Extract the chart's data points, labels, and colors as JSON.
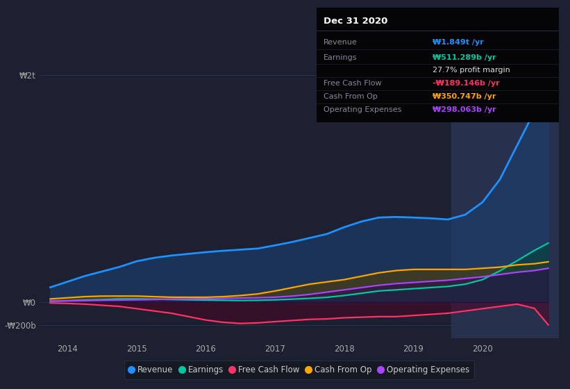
{
  "bg_color": "#1c2030",
  "plot_bg_color": "#1c2030",
  "grid_color": "#2a3347",
  "title_box": {
    "title": "Dec 31 2020",
    "row_data": [
      {
        "label": "Revenue",
        "value": "₩1.849t /yr",
        "value_color": "#1e90ff"
      },
      {
        "label": "Earnings",
        "value": "₩511.289b /yr",
        "value_color": "#00c8a0"
      },
      {
        "label": "",
        "value": "27.7% profit margin",
        "value_color": "#dddddd"
      },
      {
        "label": "Free Cash Flow",
        "value": "-₩189.146b /yr",
        "value_color": "#ff3366"
      },
      {
        "label": "Cash From Op",
        "value": "₩350.747b /yr",
        "value_color": "#ffa500"
      },
      {
        "label": "Operating Expenses",
        "value": "₩298.063b /yr",
        "value_color": "#aa44ff"
      }
    ],
    "label_color": "#888899",
    "bg_color": "#050508"
  },
  "ytick_labels": [
    "₩2t",
    "₩0",
    "-₩200b"
  ],
  "ytick_vals": [
    2000,
    0,
    -200
  ],
  "ylim": [
    -320,
    2250
  ],
  "xlim": [
    2013.6,
    2021.1
  ],
  "highlight_x_start": 2019.55,
  "highlight_x_end": 2021.1,
  "highlight_color": "#2a3555",
  "series": {
    "revenue": {
      "color": "#1e90ff",
      "fill_color": "#1a4070",
      "fill_alpha": 0.6,
      "label": "Revenue",
      "lw": 2.0
    },
    "earnings": {
      "color": "#00c8a0",
      "fill_color": "#00453a",
      "fill_alpha": 0.55,
      "label": "Earnings",
      "lw": 1.6
    },
    "fcf": {
      "color": "#ff3366",
      "fill_color": "#550022",
      "fill_alpha": 0.45,
      "label": "Free Cash Flow",
      "lw": 1.6
    },
    "cashfromop": {
      "color": "#ffa500",
      "fill_color": "#554000",
      "fill_alpha": 0.55,
      "label": "Cash From Op",
      "lw": 1.6
    },
    "opex": {
      "color": "#aa44ff",
      "fill_color": "#2a0055",
      "fill_alpha": 0.45,
      "label": "Operating Expenses",
      "lw": 1.6
    }
  },
  "x": [
    2013.75,
    2014.0,
    2014.25,
    2014.5,
    2014.75,
    2015.0,
    2015.25,
    2015.5,
    2015.75,
    2016.0,
    2016.25,
    2016.5,
    2016.75,
    2017.0,
    2017.25,
    2017.5,
    2017.75,
    2018.0,
    2018.25,
    2018.5,
    2018.75,
    2019.0,
    2019.25,
    2019.5,
    2019.75,
    2020.0,
    2020.25,
    2020.5,
    2020.75,
    2020.95
  ],
  "revenue": [
    130,
    180,
    230,
    270,
    310,
    360,
    390,
    410,
    425,
    440,
    452,
    462,
    472,
    500,
    530,
    565,
    600,
    660,
    710,
    745,
    750,
    745,
    738,
    728,
    770,
    880,
    1080,
    1380,
    1680,
    1870
  ],
  "earnings": [
    8,
    12,
    18,
    22,
    28,
    28,
    26,
    23,
    20,
    18,
    16,
    14,
    16,
    20,
    26,
    33,
    42,
    58,
    78,
    98,
    108,
    118,
    128,
    138,
    158,
    198,
    275,
    365,
    455,
    520
  ],
  "fcf": [
    -8,
    -12,
    -18,
    -28,
    -38,
    -58,
    -78,
    -98,
    -128,
    -158,
    -178,
    -188,
    -183,
    -172,
    -162,
    -152,
    -148,
    -138,
    -133,
    -128,
    -128,
    -118,
    -108,
    -98,
    -78,
    -58,
    -38,
    -18,
    -55,
    -200
  ],
  "cashfromop": [
    28,
    38,
    48,
    53,
    53,
    53,
    48,
    43,
    43,
    43,
    48,
    58,
    72,
    98,
    128,
    158,
    178,
    198,
    228,
    258,
    278,
    288,
    288,
    288,
    288,
    298,
    308,
    328,
    338,
    355
  ],
  "opex": [
    8,
    10,
    13,
    16,
    18,
    20,
    23,
    26,
    28,
    30,
    33,
    36,
    38,
    43,
    53,
    68,
    88,
    108,
    128,
    148,
    163,
    173,
    183,
    193,
    208,
    223,
    243,
    263,
    278,
    298
  ],
  "xticks": [
    2014,
    2015,
    2016,
    2017,
    2018,
    2019,
    2020
  ]
}
